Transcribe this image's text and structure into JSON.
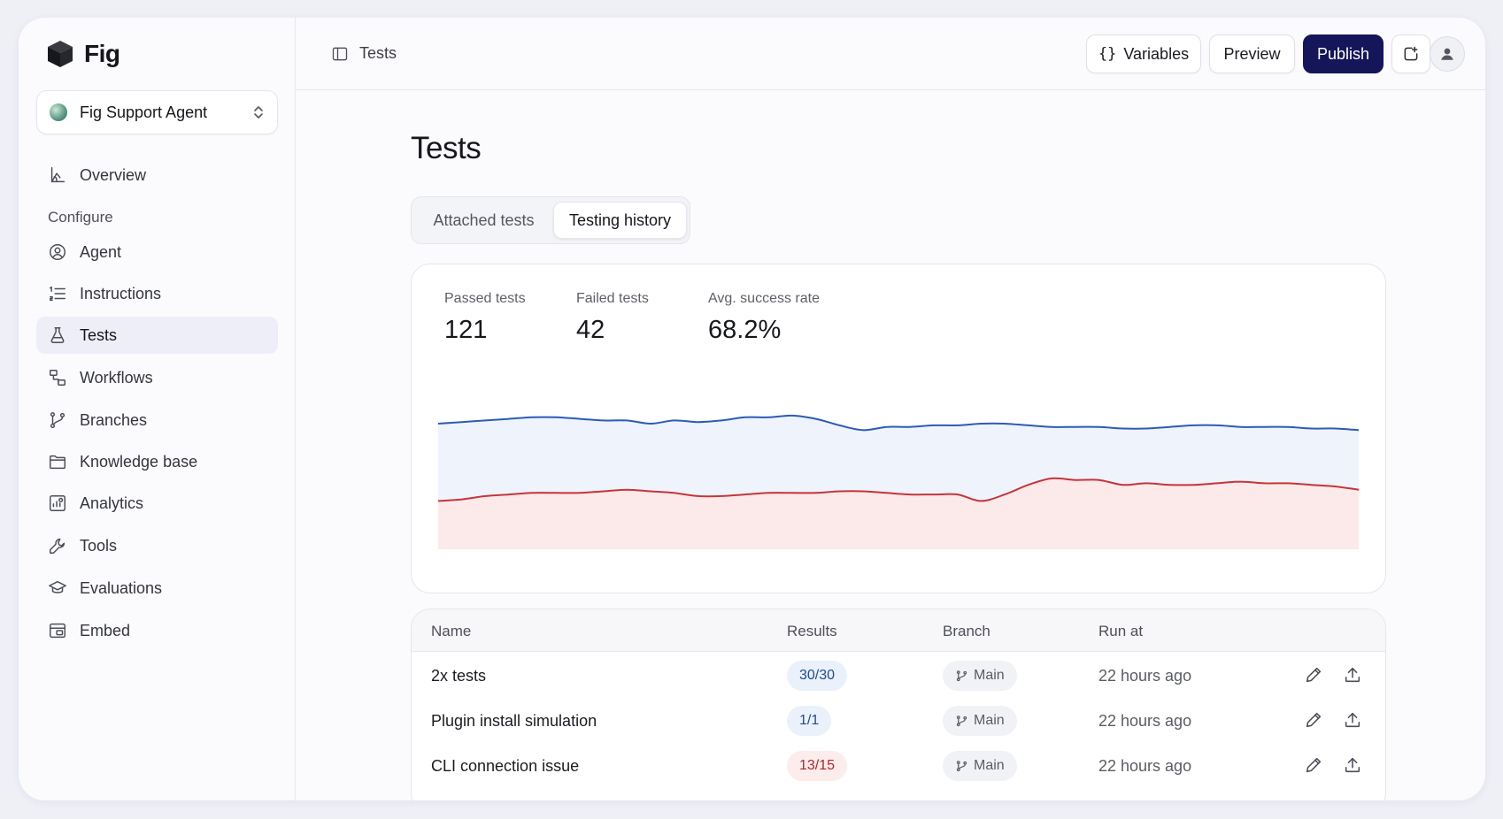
{
  "app": {
    "name": "Fig"
  },
  "agent_select": {
    "name": "Fig Support Agent"
  },
  "sidebar": {
    "overview": "Overview",
    "section_configure": "Configure",
    "items": [
      {
        "label": "Agent",
        "icon": "user-circle-icon"
      },
      {
        "label": "Instructions",
        "icon": "list-numbered-icon"
      },
      {
        "label": "Tests",
        "icon": "flask-icon",
        "active": true
      },
      {
        "label": "Workflows",
        "icon": "workflow-icon"
      },
      {
        "label": "Branches",
        "icon": "git-branch-icon"
      },
      {
        "label": "Knowledge base",
        "icon": "folder-icon"
      },
      {
        "label": "Analytics",
        "icon": "analytics-icon"
      },
      {
        "label": "Tools",
        "icon": "wrench-icon"
      },
      {
        "label": "Evaluations",
        "icon": "graduation-cap-icon"
      },
      {
        "label": "Embed",
        "icon": "embed-icon"
      }
    ]
  },
  "topbar": {
    "breadcrumb": "Tests",
    "variables_label": "Variables",
    "preview_label": "Preview",
    "publish_label": "Publish"
  },
  "page": {
    "title": "Tests",
    "tabs": [
      "Attached tests",
      "Testing history"
    ],
    "active_tab": "Testing history"
  },
  "stats": {
    "passed_label": "Passed tests",
    "passed_value": "121",
    "failed_label": "Failed tests",
    "failed_value": "42",
    "rate_label": "Avg. success rate",
    "rate_value": "68.2%"
  },
  "chart_data": {
    "type": "area",
    "series": [
      {
        "color": "#2d5bb5",
        "fill": "#eef3fc",
        "values": [
          78,
          79,
          80,
          81,
          82,
          82,
          81,
          80,
          80,
          78,
          80,
          79,
          80,
          82,
          82,
          83,
          81,
          77,
          74,
          76,
          76,
          77,
          77,
          78,
          78,
          77,
          76,
          76,
          76,
          75,
          75,
          76,
          77,
          77,
          76,
          76,
          76,
          75,
          75,
          74
        ]
      },
      {
        "color": "#c5353a",
        "fill": "#fce9e9",
        "values": [
          30,
          31,
          33,
          34,
          35,
          35,
          35,
          36,
          37,
          36,
          35,
          33,
          33,
          34,
          35,
          35,
          35,
          36,
          36,
          35,
          34,
          34,
          34,
          30,
          34,
          40,
          44,
          43,
          43,
          40,
          41,
          40,
          40,
          41,
          42,
          41,
          41,
          40,
          39,
          37
        ]
      }
    ],
    "ylim": [
      0,
      100
    ],
    "grid": false
  },
  "table": {
    "headers": [
      "Name",
      "Results",
      "Branch",
      "Run at"
    ],
    "rows": [
      {
        "name": "2x tests",
        "results": "30/30",
        "status": "blue",
        "branch": "Main",
        "run_at": "22 hours ago"
      },
      {
        "name": "Plugin install simulation",
        "results": "1/1",
        "status": "blue",
        "branch": "Main",
        "run_at": "22 hours ago"
      },
      {
        "name": "CLI connection issue",
        "results": "13/15",
        "status": "red",
        "branch": "Main",
        "run_at": "22 hours ago"
      }
    ]
  }
}
